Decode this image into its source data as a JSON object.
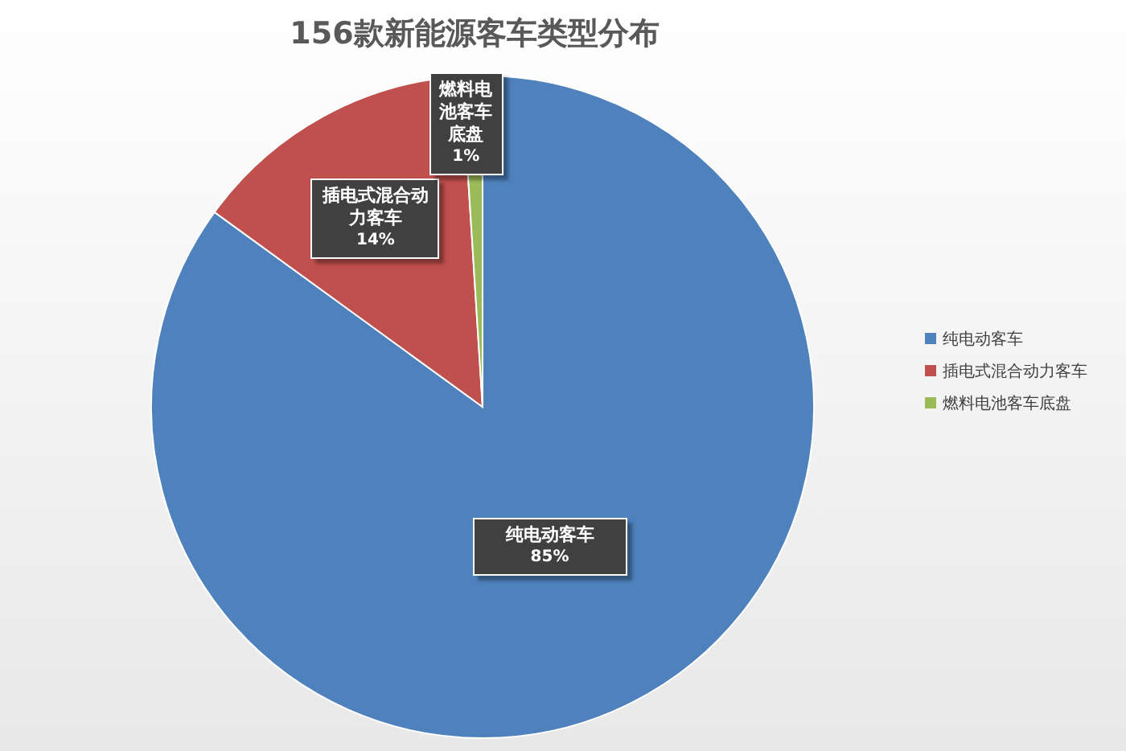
{
  "chart_data": {
    "type": "pie",
    "title": "156款新能源客车类型分布",
    "categories": [
      "纯电动客车",
      "插电式混合动力客车",
      "燃料电池客车底盘"
    ],
    "values": [
      85,
      14,
      1
    ],
    "colors": [
      "#4f81bd",
      "#c0504d",
      "#9bbb59"
    ],
    "value_labels": [
      "85%",
      "14%",
      "1%"
    ],
    "legend": "right"
  }
}
